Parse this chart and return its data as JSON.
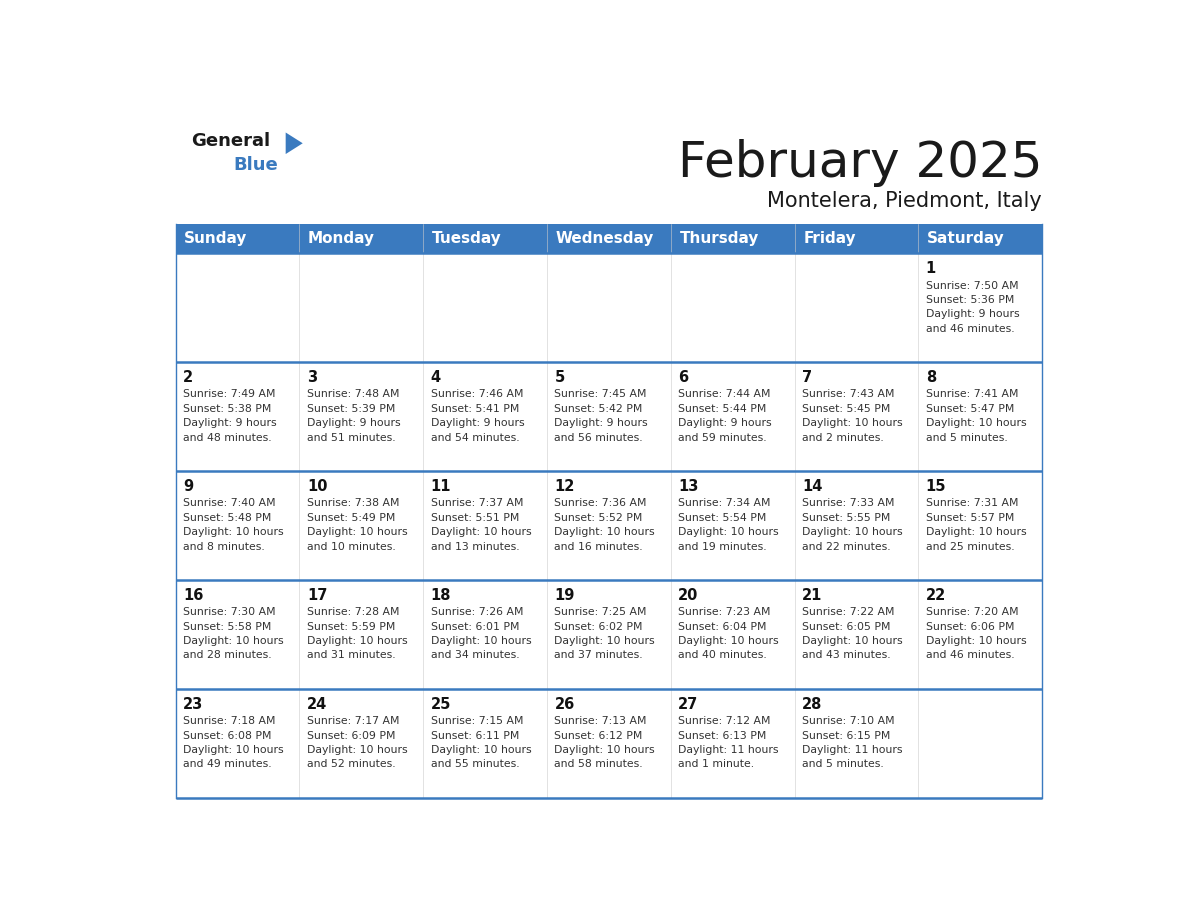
{
  "title": "February 2025",
  "subtitle": "Montelera, Piedmont, Italy",
  "header_bg": "#3a7abf",
  "header_text": "#ffffff",
  "border_color": "#3a7abf",
  "text_color": "#222222",
  "days_of_week": [
    "Sunday",
    "Monday",
    "Tuesday",
    "Wednesday",
    "Thursday",
    "Friday",
    "Saturday"
  ],
  "weeks": [
    [
      {
        "day": null,
        "info": null
      },
      {
        "day": null,
        "info": null
      },
      {
        "day": null,
        "info": null
      },
      {
        "day": null,
        "info": null
      },
      {
        "day": null,
        "info": null
      },
      {
        "day": null,
        "info": null
      },
      {
        "day": 1,
        "info": "Sunrise: 7:50 AM\nSunset: 5:36 PM\nDaylight: 9 hours\nand 46 minutes."
      }
    ],
    [
      {
        "day": 2,
        "info": "Sunrise: 7:49 AM\nSunset: 5:38 PM\nDaylight: 9 hours\nand 48 minutes."
      },
      {
        "day": 3,
        "info": "Sunrise: 7:48 AM\nSunset: 5:39 PM\nDaylight: 9 hours\nand 51 minutes."
      },
      {
        "day": 4,
        "info": "Sunrise: 7:46 AM\nSunset: 5:41 PM\nDaylight: 9 hours\nand 54 minutes."
      },
      {
        "day": 5,
        "info": "Sunrise: 7:45 AM\nSunset: 5:42 PM\nDaylight: 9 hours\nand 56 minutes."
      },
      {
        "day": 6,
        "info": "Sunrise: 7:44 AM\nSunset: 5:44 PM\nDaylight: 9 hours\nand 59 minutes."
      },
      {
        "day": 7,
        "info": "Sunrise: 7:43 AM\nSunset: 5:45 PM\nDaylight: 10 hours\nand 2 minutes."
      },
      {
        "day": 8,
        "info": "Sunrise: 7:41 AM\nSunset: 5:47 PM\nDaylight: 10 hours\nand 5 minutes."
      }
    ],
    [
      {
        "day": 9,
        "info": "Sunrise: 7:40 AM\nSunset: 5:48 PM\nDaylight: 10 hours\nand 8 minutes."
      },
      {
        "day": 10,
        "info": "Sunrise: 7:38 AM\nSunset: 5:49 PM\nDaylight: 10 hours\nand 10 minutes."
      },
      {
        "day": 11,
        "info": "Sunrise: 7:37 AM\nSunset: 5:51 PM\nDaylight: 10 hours\nand 13 minutes."
      },
      {
        "day": 12,
        "info": "Sunrise: 7:36 AM\nSunset: 5:52 PM\nDaylight: 10 hours\nand 16 minutes."
      },
      {
        "day": 13,
        "info": "Sunrise: 7:34 AM\nSunset: 5:54 PM\nDaylight: 10 hours\nand 19 minutes."
      },
      {
        "day": 14,
        "info": "Sunrise: 7:33 AM\nSunset: 5:55 PM\nDaylight: 10 hours\nand 22 minutes."
      },
      {
        "day": 15,
        "info": "Sunrise: 7:31 AM\nSunset: 5:57 PM\nDaylight: 10 hours\nand 25 minutes."
      }
    ],
    [
      {
        "day": 16,
        "info": "Sunrise: 7:30 AM\nSunset: 5:58 PM\nDaylight: 10 hours\nand 28 minutes."
      },
      {
        "day": 17,
        "info": "Sunrise: 7:28 AM\nSunset: 5:59 PM\nDaylight: 10 hours\nand 31 minutes."
      },
      {
        "day": 18,
        "info": "Sunrise: 7:26 AM\nSunset: 6:01 PM\nDaylight: 10 hours\nand 34 minutes."
      },
      {
        "day": 19,
        "info": "Sunrise: 7:25 AM\nSunset: 6:02 PM\nDaylight: 10 hours\nand 37 minutes."
      },
      {
        "day": 20,
        "info": "Sunrise: 7:23 AM\nSunset: 6:04 PM\nDaylight: 10 hours\nand 40 minutes."
      },
      {
        "day": 21,
        "info": "Sunrise: 7:22 AM\nSunset: 6:05 PM\nDaylight: 10 hours\nand 43 minutes."
      },
      {
        "day": 22,
        "info": "Sunrise: 7:20 AM\nSunset: 6:06 PM\nDaylight: 10 hours\nand 46 minutes."
      }
    ],
    [
      {
        "day": 23,
        "info": "Sunrise: 7:18 AM\nSunset: 6:08 PM\nDaylight: 10 hours\nand 49 minutes."
      },
      {
        "day": 24,
        "info": "Sunrise: 7:17 AM\nSunset: 6:09 PM\nDaylight: 10 hours\nand 52 minutes."
      },
      {
        "day": 25,
        "info": "Sunrise: 7:15 AM\nSunset: 6:11 PM\nDaylight: 10 hours\nand 55 minutes."
      },
      {
        "day": 26,
        "info": "Sunrise: 7:13 AM\nSunset: 6:12 PM\nDaylight: 10 hours\nand 58 minutes."
      },
      {
        "day": 27,
        "info": "Sunrise: 7:12 AM\nSunset: 6:13 PM\nDaylight: 11 hours\nand 1 minute."
      },
      {
        "day": 28,
        "info": "Sunrise: 7:10 AM\nSunset: 6:15 PM\nDaylight: 11 hours\nand 5 minutes."
      },
      {
        "day": null,
        "info": null
      }
    ]
  ],
  "logo_general_color": "#1a1a1a",
  "logo_blue_color": "#3a7abf",
  "logo_triangle_color": "#3a7abf"
}
